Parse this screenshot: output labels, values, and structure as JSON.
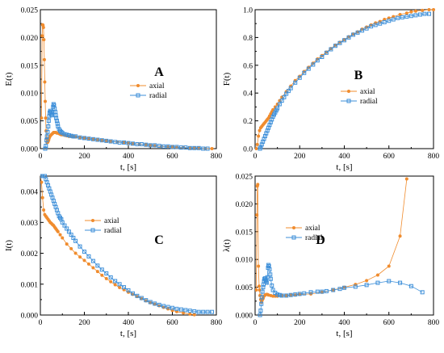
{
  "colors": {
    "axial": "#F08C2E",
    "radial": "#3D8FD9"
  },
  "chart_data": [
    {
      "panel": "A",
      "type": "line",
      "letter": "A",
      "xlabel": "t, [s]",
      "ylabel": "E(t)",
      "xlim": [
        0,
        800
      ],
      "ylim": [
        0,
        0.025
      ],
      "xticks": [
        0,
        200,
        400,
        600,
        800
      ],
      "yticks": [
        0,
        0.005,
        0.01,
        0.015,
        0.02,
        0.025
      ],
      "ytick_labels": [
        "0.000",
        "0.005",
        "0.010",
        "0.015",
        "0.020",
        "0.025"
      ],
      "legend_position": "center-right",
      "series": [
        {
          "name": "axial",
          "marker": "circle",
          "x": [
            5,
            8,
            10,
            12,
            14,
            16,
            18,
            20,
            22,
            24,
            26,
            28,
            30,
            32,
            34,
            36,
            38,
            40,
            42,
            45,
            50,
            55,
            60,
            65,
            70,
            75,
            80,
            85,
            90,
            95,
            100,
            110,
            120,
            130,
            140,
            150,
            160,
            180,
            200,
            220,
            240,
            260,
            280,
            300,
            320,
            350,
            380,
            400,
            420,
            450,
            480,
            500,
            520,
            550,
            580,
            600,
            620,
            650,
            680,
            700,
            720,
            750,
            780
          ],
          "y": [
            0.0055,
            0.0203,
            0.0223,
            0.0222,
            0.0218,
            0.0196,
            0.016,
            0.012,
            0.0085,
            0.0055,
            0.0032,
            0.0018,
            0.0012,
            0.0011,
            0.0012,
            0.0014,
            0.0016,
            0.0019,
            0.0021,
            0.0023,
            0.0025,
            0.0027,
            0.0029,
            0.0029,
            0.0029,
            0.0028,
            0.0028,
            0.0027,
            0.0026,
            0.0025,
            0.0025,
            0.0024,
            0.0023,
            0.0022,
            0.0022,
            0.0021,
            0.0021,
            0.002,
            0.0019,
            0.0018,
            0.0017,
            0.0016,
            0.0015,
            0.0014,
            0.0013,
            0.0012,
            0.0011,
            0.001,
            0.0009,
            0.0008,
            0.0007,
            0.0006,
            0.0005,
            0.0004,
            0.0003,
            0.0003,
            0.0002,
            0.0002,
            0.0001,
            0.0001,
            0.0001,
            0.0,
            0.0
          ]
        },
        {
          "name": "radial",
          "marker": "square",
          "x": [
            22,
            25,
            28,
            30,
            33,
            36,
            38,
            40,
            42,
            45,
            48,
            50,
            52,
            55,
            58,
            60,
            62,
            65,
            68,
            70,
            72,
            75,
            78,
            80,
            85,
            90,
            95,
            100,
            110,
            120,
            130,
            140,
            150,
            160,
            180,
            200,
            220,
            240,
            260,
            280,
            300,
            320,
            340,
            360,
            380,
            400,
            420,
            440,
            460,
            480,
            500,
            520,
            540,
            560,
            580,
            600,
            620,
            640,
            660,
            680,
            700,
            720,
            740,
            760
          ],
          "y": [
            0.0,
            0.0005,
            0.0015,
            0.0022,
            0.003,
            0.004,
            0.005,
            0.0058,
            0.0065,
            0.0068,
            0.0066,
            0.0062,
            0.006,
            0.0065,
            0.0075,
            0.008,
            0.0078,
            0.0072,
            0.0066,
            0.006,
            0.0055,
            0.005,
            0.0045,
            0.004,
            0.0035,
            0.0032,
            0.003,
            0.0028,
            0.0026,
            0.0025,
            0.0024,
            0.0023,
            0.0022,
            0.0022,
            0.002,
            0.0019,
            0.0018,
            0.0017,
            0.0016,
            0.0015,
            0.0014,
            0.0013,
            0.0012,
            0.0011,
            0.0011,
            0.001,
            0.0009,
            0.0008,
            0.0008,
            0.0007,
            0.0006,
            0.0006,
            0.0005,
            0.0004,
            0.0004,
            0.0003,
            0.0003,
            0.0002,
            0.0002,
            0.0001,
            0.0001,
            0.0001,
            0.0,
            0.0
          ]
        }
      ]
    },
    {
      "panel": "B",
      "type": "line",
      "letter": "B",
      "xlabel": "t, [s]",
      "ylabel": "F(t)",
      "xlim": [
        0,
        800
      ],
      "ylim": [
        0,
        1
      ],
      "xticks": [
        0,
        200,
        400,
        600,
        800
      ],
      "yticks": [
        0,
        0.2,
        0.4,
        0.6,
        0.8,
        1.0
      ],
      "ytick_labels": [
        "0.0",
        "0.2",
        "0.4",
        "0.6",
        "0.8",
        "1.0"
      ],
      "legend_position": "center-right",
      "series": [
        {
          "name": "axial",
          "marker": "circle",
          "x": [
            5,
            10,
            15,
            20,
            25,
            30,
            35,
            40,
            45,
            50,
            55,
            60,
            65,
            70,
            75,
            80,
            90,
            100,
            110,
            120,
            140,
            160,
            180,
            200,
            220,
            240,
            260,
            280,
            300,
            320,
            340,
            360,
            380,
            400,
            420,
            440,
            460,
            480,
            500,
            520,
            540,
            560,
            580,
            600,
            620,
            650,
            680,
            700,
            720,
            750,
            780,
            800
          ],
          "y": [
            0.0,
            0.03,
            0.09,
            0.13,
            0.15,
            0.16,
            0.17,
            0.18,
            0.19,
            0.2,
            0.21,
            0.22,
            0.235,
            0.25,
            0.265,
            0.28,
            0.3,
            0.32,
            0.345,
            0.37,
            0.41,
            0.45,
            0.49,
            0.52,
            0.555,
            0.585,
            0.615,
            0.645,
            0.67,
            0.695,
            0.72,
            0.745,
            0.765,
            0.785,
            0.805,
            0.825,
            0.84,
            0.86,
            0.875,
            0.89,
            0.905,
            0.915,
            0.93,
            0.94,
            0.95,
            0.965,
            0.975,
            0.985,
            0.99,
            0.995,
            1.0,
            1.0
          ]
        },
        {
          "name": "radial",
          "marker": "square",
          "x": [
            22,
            25,
            30,
            35,
            40,
            45,
            50,
            55,
            60,
            65,
            70,
            75,
            80,
            85,
            90,
            95,
            100,
            110,
            120,
            130,
            140,
            150,
            160,
            180,
            200,
            220,
            240,
            260,
            280,
            300,
            320,
            340,
            360,
            380,
            400,
            420,
            440,
            460,
            480,
            500,
            520,
            540,
            560,
            580,
            600,
            620,
            640,
            660,
            680,
            700,
            720,
            740,
            760,
            780
          ],
          "y": [
            0.0,
            0.01,
            0.03,
            0.05,
            0.07,
            0.09,
            0.11,
            0.13,
            0.15,
            0.17,
            0.19,
            0.21,
            0.23,
            0.245,
            0.26,
            0.275,
            0.29,
            0.32,
            0.345,
            0.37,
            0.395,
            0.415,
            0.435,
            0.475,
            0.51,
            0.545,
            0.575,
            0.605,
            0.635,
            0.66,
            0.69,
            0.715,
            0.74,
            0.76,
            0.78,
            0.8,
            0.82,
            0.835,
            0.85,
            0.865,
            0.88,
            0.89,
            0.9,
            0.91,
            0.92,
            0.93,
            0.94,
            0.945,
            0.95,
            0.955,
            0.96,
            0.965,
            0.97,
            0.97
          ]
        }
      ]
    },
    {
      "panel": "C",
      "type": "line",
      "letter": "C",
      "xlabel": "t, [s]",
      "ylabel": "I(t)",
      "xlim": [
        0,
        800
      ],
      "ylim": [
        0,
        0.0045
      ],
      "xticks": [
        0,
        200,
        400,
        600,
        800
      ],
      "yticks": [
        0,
        0.001,
        0.002,
        0.003,
        0.004
      ],
      "ytick_labels": [
        "0.000",
        "0.001",
        "0.002",
        "0.003",
        "0.004"
      ],
      "legend_position": "center-right",
      "series": [
        {
          "name": "axial",
          "marker": "circle",
          "x": [
            0,
            5,
            10,
            15,
            20,
            25,
            30,
            35,
            40,
            45,
            50,
            55,
            60,
            65,
            70,
            75,
            80,
            90,
            100,
            120,
            140,
            160,
            180,
            200,
            220,
            240,
            260,
            280,
            300,
            320,
            340,
            360,
            380,
            400,
            420,
            440,
            460,
            480,
            500,
            520,
            540,
            560,
            580,
            600,
            620,
            650,
            680,
            700
          ],
          "y": [
            0.0045,
            0.0043,
            0.0038,
            0.0034,
            0.00325,
            0.0032,
            0.00315,
            0.0031,
            0.00305,
            0.003,
            0.00297,
            0.00293,
            0.0029,
            0.00285,
            0.0028,
            0.00275,
            0.0027,
            0.0026,
            0.0025,
            0.0023,
            0.00215,
            0.002,
            0.00188,
            0.00177,
            0.00165,
            0.00153,
            0.00141,
            0.00129,
            0.00118,
            0.00108,
            0.00098,
            0.00089,
            0.00082,
            0.00074,
            0.00067,
            0.0006,
            0.00053,
            0.00046,
            0.0004,
            0.00035,
            0.0003,
            0.00025,
            0.0002,
            0.00015,
            0.00011,
            7e-05,
            3e-05,
            1e-05
          ]
        },
        {
          "name": "radial",
          "marker": "square",
          "x": [
            0,
            10,
            20,
            25,
            30,
            35,
            40,
            45,
            50,
            55,
            60,
            65,
            70,
            75,
            80,
            85,
            90,
            95,
            100,
            110,
            120,
            130,
            140,
            150,
            160,
            180,
            200,
            220,
            240,
            260,
            280,
            300,
            320,
            340,
            360,
            380,
            400,
            420,
            440,
            460,
            480,
            500,
            520,
            540,
            560,
            580,
            600,
            620,
            640,
            660,
            680,
            700,
            720,
            740,
            760,
            780
          ],
          "y": [
            0.0045,
            0.0045,
            0.0045,
            0.0044,
            0.0043,
            0.0042,
            0.0041,
            0.004,
            0.0039,
            0.0038,
            0.0037,
            0.0036,
            0.0035,
            0.0034,
            0.0033,
            0.0032,
            0.00315,
            0.0031,
            0.003,
            0.0029,
            0.0028,
            0.0027,
            0.0026,
            0.0025,
            0.0024,
            0.00222,
            0.00205,
            0.0019,
            0.00175,
            0.0016,
            0.00147,
            0.00135,
            0.00122,
            0.0011,
            0.001,
            0.0009,
            0.0008,
            0.0007,
            0.00062,
            0.00055,
            0.00048,
            0.00042,
            0.00037,
            0.00033,
            0.00029,
            0.00026,
            0.00023,
            0.0002,
            0.00018,
            0.00016,
            0.00014,
            0.00012,
            0.0001,
            0.0001,
            0.0001,
            0.0001
          ]
        }
      ]
    },
    {
      "panel": "D",
      "type": "line",
      "letter": "D",
      "xlabel": "t, [s]",
      "ylabel": "λ(t)",
      "xlim": [
        0,
        800
      ],
      "ylim": [
        0,
        0.025
      ],
      "xticks": [
        0,
        200,
        400,
        600,
        800
      ],
      "yticks": [
        0,
        0.005,
        0.01,
        0.015,
        0.02,
        0.025
      ],
      "ytick_labels": [
        "0.000",
        "0.005",
        "0.010",
        "0.015",
        "0.020",
        "0.025"
      ],
      "legend_position": "center",
      "series": [
        {
          "name": "axial",
          "marker": "circle",
          "x": [
            5,
            8,
            10,
            12,
            15,
            18,
            20,
            22,
            25,
            28,
            30,
            33,
            36,
            40,
            45,
            50,
            55,
            60,
            70,
            80,
            90,
            100,
            120,
            140,
            160,
            180,
            200,
            250,
            300,
            350,
            400,
            450,
            500,
            550,
            600,
            650,
            680
          ],
          "y": [
            0.0045,
            0.018,
            0.0232,
            0.0235,
            0.0088,
            0.0052,
            0.0045,
            0.0035,
            0.0028,
            0.0023,
            0.0025,
            0.0028,
            0.003,
            0.0034,
            0.0036,
            0.0037,
            0.0037,
            0.0036,
            0.0035,
            0.0034,
            0.0034,
            0.0034,
            0.0035,
            0.0035,
            0.0036,
            0.0036,
            0.0037,
            0.0038,
            0.0041,
            0.0045,
            0.005,
            0.0055,
            0.0062,
            0.0072,
            0.0088,
            0.0142,
            0.0245
          ]
        },
        {
          "name": "radial",
          "marker": "square",
          "x": [
            22,
            25,
            28,
            30,
            33,
            36,
            38,
            40,
            42,
            45,
            48,
            50,
            52,
            55,
            58,
            60,
            62,
            65,
            68,
            70,
            75,
            80,
            90,
            100,
            110,
            120,
            140,
            160,
            180,
            200,
            220,
            250,
            280,
            300,
            320,
            350,
            380,
            400,
            450,
            500,
            550,
            600,
            650,
            700,
            750
          ],
          "y": [
            0.0,
            0.0008,
            0.002,
            0.0032,
            0.0042,
            0.005,
            0.0055,
            0.0061,
            0.0065,
            0.0066,
            0.0063,
            0.006,
            0.0058,
            0.0068,
            0.0085,
            0.009,
            0.0088,
            0.0082,
            0.0073,
            0.0065,
            0.0053,
            0.0045,
            0.004,
            0.0037,
            0.0036,
            0.0035,
            0.0035,
            0.0036,
            0.0037,
            0.0038,
            0.0039,
            0.0041,
            0.0042,
            0.0042,
            0.0043,
            0.0045,
            0.0047,
            0.0049,
            0.0051,
            0.0054,
            0.0058,
            0.0061,
            0.0058,
            0.0052,
            0.0041
          ]
        }
      ]
    }
  ]
}
